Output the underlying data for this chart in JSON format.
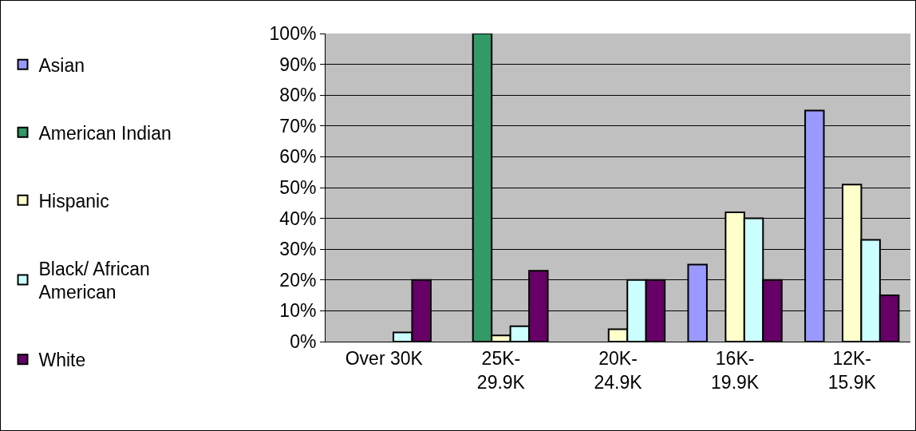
{
  "chart_data": {
    "type": "bar",
    "categories": [
      "Over 30K",
      "25K-29.9K",
      "20K-24.9K",
      "16K-19.9K",
      "12K-15.9K"
    ],
    "series": [
      {
        "name": "Asian",
        "color": "#9999ff",
        "values": [
          null,
          null,
          null,
          25,
          75
        ]
      },
      {
        "name": "American Indian",
        "color": "#339966",
        "values": [
          null,
          100,
          null,
          null,
          null
        ]
      },
      {
        "name": "Hispanic",
        "color": "#ffffcc",
        "values": [
          null,
          2,
          4,
          42,
          51
        ]
      },
      {
        "name": "Black/ African American",
        "color": "#ccffff",
        "values": [
          3,
          5,
          20,
          40,
          33
        ]
      },
      {
        "name": "White",
        "color": "#660066",
        "values": [
          20,
          23,
          20,
          20,
          15
        ]
      }
    ],
    "ylim": [
      0,
      100
    ],
    "yticks": [
      {
        "value": 0,
        "label": "0%"
      },
      {
        "value": 10,
        "label": "10%"
      },
      {
        "value": 20,
        "label": "20%"
      },
      {
        "value": 30,
        "label": "30%"
      },
      {
        "value": 40,
        "label": "40%"
      },
      {
        "value": 50,
        "label": "50%"
      },
      {
        "value": 60,
        "label": "60%"
      },
      {
        "value": 70,
        "label": "70%"
      },
      {
        "value": 80,
        "label": "80%"
      },
      {
        "value": 90,
        "label": "90%"
      },
      {
        "value": 100,
        "label": "100%"
      }
    ],
    "grid": "y",
    "legend": "left"
  }
}
